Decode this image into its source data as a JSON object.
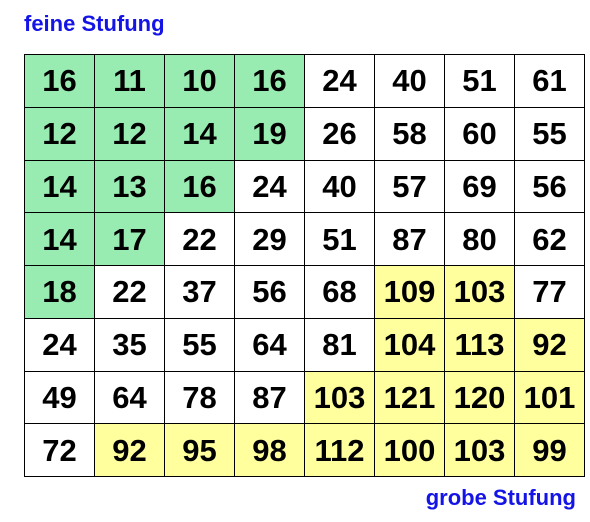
{
  "labels": {
    "fine": "feine Stufung",
    "coarse": "grobe Stufung"
  },
  "colors": {
    "label_text": "#1414e6",
    "fine_region": "#98ecb2",
    "coarse_region": "#ffff9e",
    "neutral": "#ffffff",
    "grid_lines": "#000000"
  },
  "matrix": [
    [
      "16",
      "11",
      "10",
      "16",
      "24",
      "40",
      "51",
      "61"
    ],
    [
      "12",
      "12",
      "14",
      "19",
      "26",
      "58",
      "60",
      "55"
    ],
    [
      "14",
      "13",
      "16",
      "24",
      "40",
      "57",
      "69",
      "56"
    ],
    [
      "14",
      "17",
      "22",
      "29",
      "51",
      "87",
      "80",
      "62"
    ],
    [
      "18",
      "22",
      "37",
      "56",
      "68",
      "109",
      "103",
      "77"
    ],
    [
      "24",
      "35",
      "55",
      "64",
      "81",
      "104",
      "113",
      "92"
    ],
    [
      "49",
      "64",
      "78",
      "87",
      "103",
      "121",
      "120",
      "101"
    ],
    [
      "72",
      "92",
      "95",
      "98",
      "112",
      "100",
      "103",
      "99"
    ]
  ],
  "highlight": [
    [
      "green",
      "green",
      "green",
      "green",
      "white",
      "white",
      "white",
      "white"
    ],
    [
      "green",
      "green",
      "green",
      "green",
      "white",
      "white",
      "white",
      "white"
    ],
    [
      "green",
      "green",
      "green",
      "white",
      "white",
      "white",
      "white",
      "white"
    ],
    [
      "green",
      "green",
      "white",
      "white",
      "white",
      "white",
      "white",
      "white"
    ],
    [
      "green",
      "white",
      "white",
      "white",
      "white",
      "yellow",
      "yellow",
      "white"
    ],
    [
      "white",
      "white",
      "white",
      "white",
      "white",
      "yellow",
      "yellow",
      "yellow"
    ],
    [
      "white",
      "white",
      "white",
      "white",
      "yellow",
      "yellow",
      "yellow",
      "yellow"
    ],
    [
      "white",
      "yellow",
      "yellow",
      "yellow",
      "yellow",
      "yellow",
      "yellow",
      "yellow"
    ]
  ]
}
